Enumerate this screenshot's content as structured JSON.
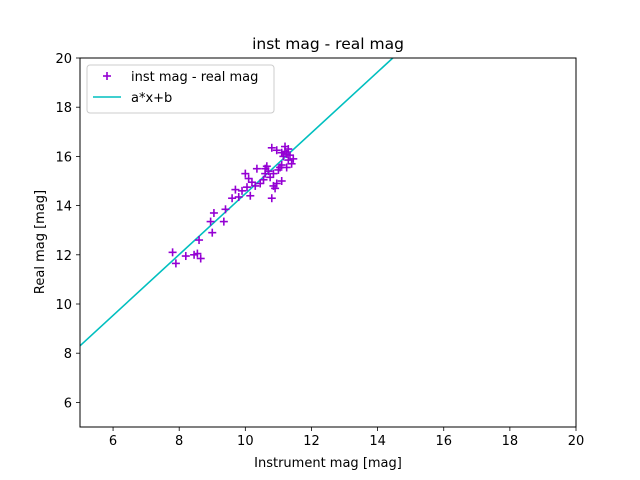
{
  "chart_data": {
    "type": "scatter",
    "title": "inst mag - real mag",
    "xlabel": "Instrument mag [mag]",
    "ylabel": "Real mag [mag]",
    "xlim": [
      5,
      20
    ],
    "ylim": [
      5,
      20
    ],
    "xticks": [
      6,
      8,
      10,
      12,
      14,
      16,
      18,
      20
    ],
    "yticks": [
      6,
      8,
      10,
      12,
      14,
      16,
      18,
      20
    ],
    "grid": false,
    "legend_position": "top-left",
    "series": [
      {
        "name": "inst mag - real mag",
        "kind": "scatter",
        "marker": "+",
        "color": "#9400d3",
        "points": [
          [
            7.8,
            12.1
          ],
          [
            7.9,
            11.65
          ],
          [
            8.2,
            11.95
          ],
          [
            8.45,
            12.0
          ],
          [
            8.55,
            12.05
          ],
          [
            8.65,
            11.85
          ],
          [
            8.6,
            12.6
          ],
          [
            8.95,
            13.35
          ],
          [
            9.0,
            12.9
          ],
          [
            9.05,
            13.7
          ],
          [
            9.35,
            13.35
          ],
          [
            9.4,
            13.85
          ],
          [
            9.6,
            14.3
          ],
          [
            9.7,
            14.65
          ],
          [
            9.8,
            14.35
          ],
          [
            9.9,
            14.6
          ],
          [
            10.0,
            15.3
          ],
          [
            10.05,
            14.75
          ],
          [
            10.1,
            15.1
          ],
          [
            10.15,
            14.4
          ],
          [
            10.2,
            14.95
          ],
          [
            10.3,
            14.8
          ],
          [
            10.35,
            15.5
          ],
          [
            10.45,
            14.9
          ],
          [
            10.55,
            15.05
          ],
          [
            10.6,
            15.5
          ],
          [
            10.6,
            15.3
          ],
          [
            10.65,
            15.6
          ],
          [
            10.7,
            15.4
          ],
          [
            10.75,
            15.15
          ],
          [
            10.8,
            14.3
          ],
          [
            10.85,
            14.8
          ],
          [
            10.85,
            15.3
          ],
          [
            10.9,
            14.7
          ],
          [
            10.95,
            14.9
          ],
          [
            10.8,
            16.35
          ],
          [
            11.0,
            15.45
          ],
          [
            11.05,
            15.55
          ],
          [
            11.1,
            15.0
          ],
          [
            11.1,
            15.65
          ],
          [
            11.15,
            16.0
          ],
          [
            11.2,
            16.4
          ],
          [
            11.2,
            16.2
          ],
          [
            11.25,
            16.1
          ],
          [
            11.3,
            15.85
          ],
          [
            11.3,
            16.3
          ],
          [
            11.35,
            16.05
          ],
          [
            11.4,
            15.7
          ],
          [
            11.45,
            15.9
          ],
          [
            11.25,
            15.55
          ],
          [
            10.95,
            16.25
          ],
          [
            11.1,
            16.15
          ]
        ]
      },
      {
        "name": "a*x+b",
        "kind": "line",
        "color": "#00bfbf",
        "x": [
          5,
          14.5
        ],
        "y": [
          8.3,
          20.05
        ]
      }
    ]
  }
}
